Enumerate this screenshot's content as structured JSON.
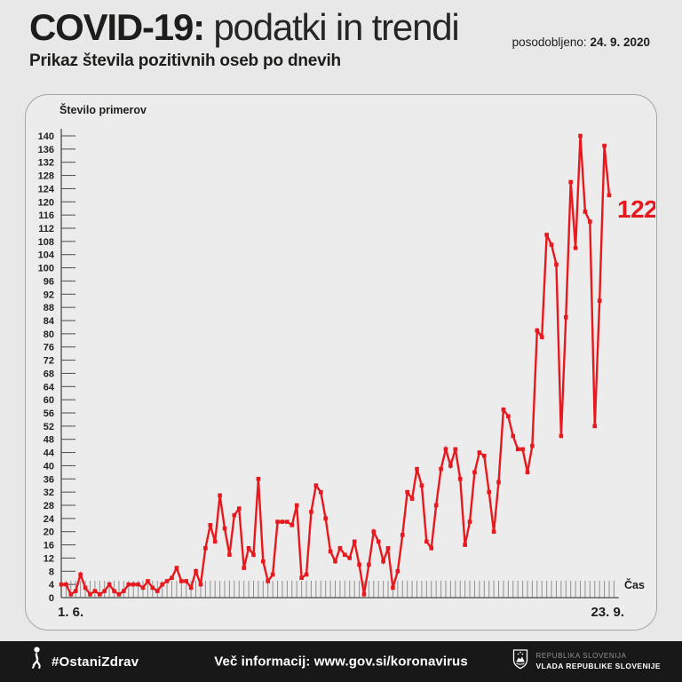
{
  "header": {
    "title_bold": "COVID-19:",
    "title_rest": "podatki in trendi",
    "updated_label": "posodobljeno:",
    "updated_date": "24. 9. 2020",
    "subtitle": "Prikaz števila pozitivnih oseb po dnevih"
  },
  "chart_data": {
    "type": "line",
    "title": "Prikaz števila pozitivnih oseb po dnevih",
    "ylabel": "Število primerov",
    "xlabel": "Čas",
    "x_axis": {
      "start_label": "1. 6.",
      "end_label": "23. 9.",
      "unit": "day"
    },
    "ylim": [
      0,
      140
    ],
    "ytick_step": 4,
    "grid": false,
    "legend_position": "none",
    "line_color": "#e8191e",
    "marker": "square",
    "annotation": {
      "text": "122",
      "at_value": 122
    },
    "values": [
      4,
      4,
      1,
      2,
      7,
      3,
      1,
      2,
      1,
      2,
      4,
      2,
      1,
      2,
      4,
      4,
      4,
      3,
      5,
      3,
      2,
      4,
      5,
      6,
      9,
      5,
      5,
      3,
      8,
      4,
      15,
      22,
      17,
      31,
      21,
      13,
      25,
      27,
      9,
      15,
      13,
      36,
      11,
      5,
      7,
      23,
      23,
      23,
      22,
      28,
      6,
      7,
      26,
      34,
      32,
      24,
      14,
      11,
      15,
      13,
      12,
      17,
      10,
      1,
      10,
      20,
      17,
      11,
      15,
      3,
      8,
      19,
      32,
      30,
      39,
      34,
      17,
      15,
      28,
      39,
      45,
      40,
      45,
      36,
      16,
      23,
      38,
      44,
      43,
      32,
      20,
      35,
      57,
      55,
      49,
      45,
      45,
      38,
      46,
      81,
      79,
      110,
      107,
      101,
      49,
      85,
      126,
      106,
      140,
      117,
      114,
      52,
      90,
      137,
      122
    ]
  },
  "footer": {
    "hashtag": "#OstaniZdrav",
    "info": "Več informacij: www.gov.si/koronavirus",
    "gov_line1": "REPUBLIKA SLOVENIJA",
    "gov_line2": "VLADA REPUBLIKE SLOVENIJE"
  },
  "colors": {
    "accent_red": "#e8191e",
    "page_bg": "#e8e8e8",
    "panel_bg": "#ececec",
    "footer_bg": "#181818"
  }
}
